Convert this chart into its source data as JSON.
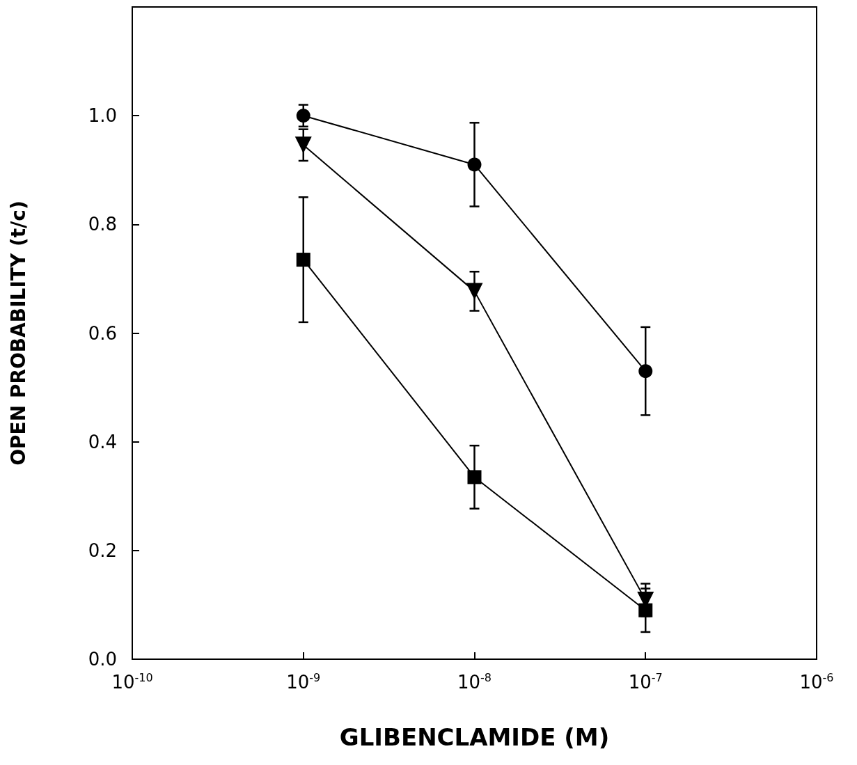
{
  "chart_data": {
    "type": "line",
    "xlabel": "GLIBENCLAMIDE (M)",
    "ylabel": "OPEN PROBABILITY (t/c)",
    "log": "x",
    "xlim": [
      1e-10,
      1e-06
    ],
    "xticks": [
      {
        "value": 1e-10,
        "label": "10$^{-10}$"
      },
      {
        "value": 1e-09,
        "label": "10$^{-9}$"
      },
      {
        "value": 1e-08,
        "label": "10$^{-8}$"
      },
      {
        "value": 1e-07,
        "label": "10$^{-7}$"
      },
      {
        "value": 1e-06,
        "label": "10$^{-6}$"
      }
    ],
    "ylim": [
      0,
      1.2
    ],
    "yticks": [
      {
        "value": 0,
        "label": "0.0"
      },
      {
        "value": 0.2,
        "label": "0.2"
      },
      {
        "value": 0.4,
        "label": "0.4"
      },
      {
        "value": 0.6,
        "label": "0.6"
      },
      {
        "value": 0.8,
        "label": "0.8"
      },
      {
        "value": 1.0,
        "label": "1.0"
      }
    ],
    "grid": false,
    "line_style": "solid",
    "x": [
      1e-09,
      1e-08,
      1e-07
    ],
    "series": [
      {
        "color": "#000000",
        "marker": "circle",
        "values": [
          1.0,
          0.91,
          0.53
        ],
        "errors": [
          0.02,
          0.077,
          0.081
        ]
      },
      {
        "color": "#000000",
        "marker": "triangle",
        "values": [
          0.946,
          0.677,
          0.109
        ],
        "errors": [
          0.029,
          0.036,
          0.03
        ]
      },
      {
        "color": "#000000",
        "marker": "square",
        "values": [
          0.735,
          0.335,
          0.09
        ],
        "errors": [
          0.115,
          0.058,
          0.04
        ]
      }
    ]
  }
}
